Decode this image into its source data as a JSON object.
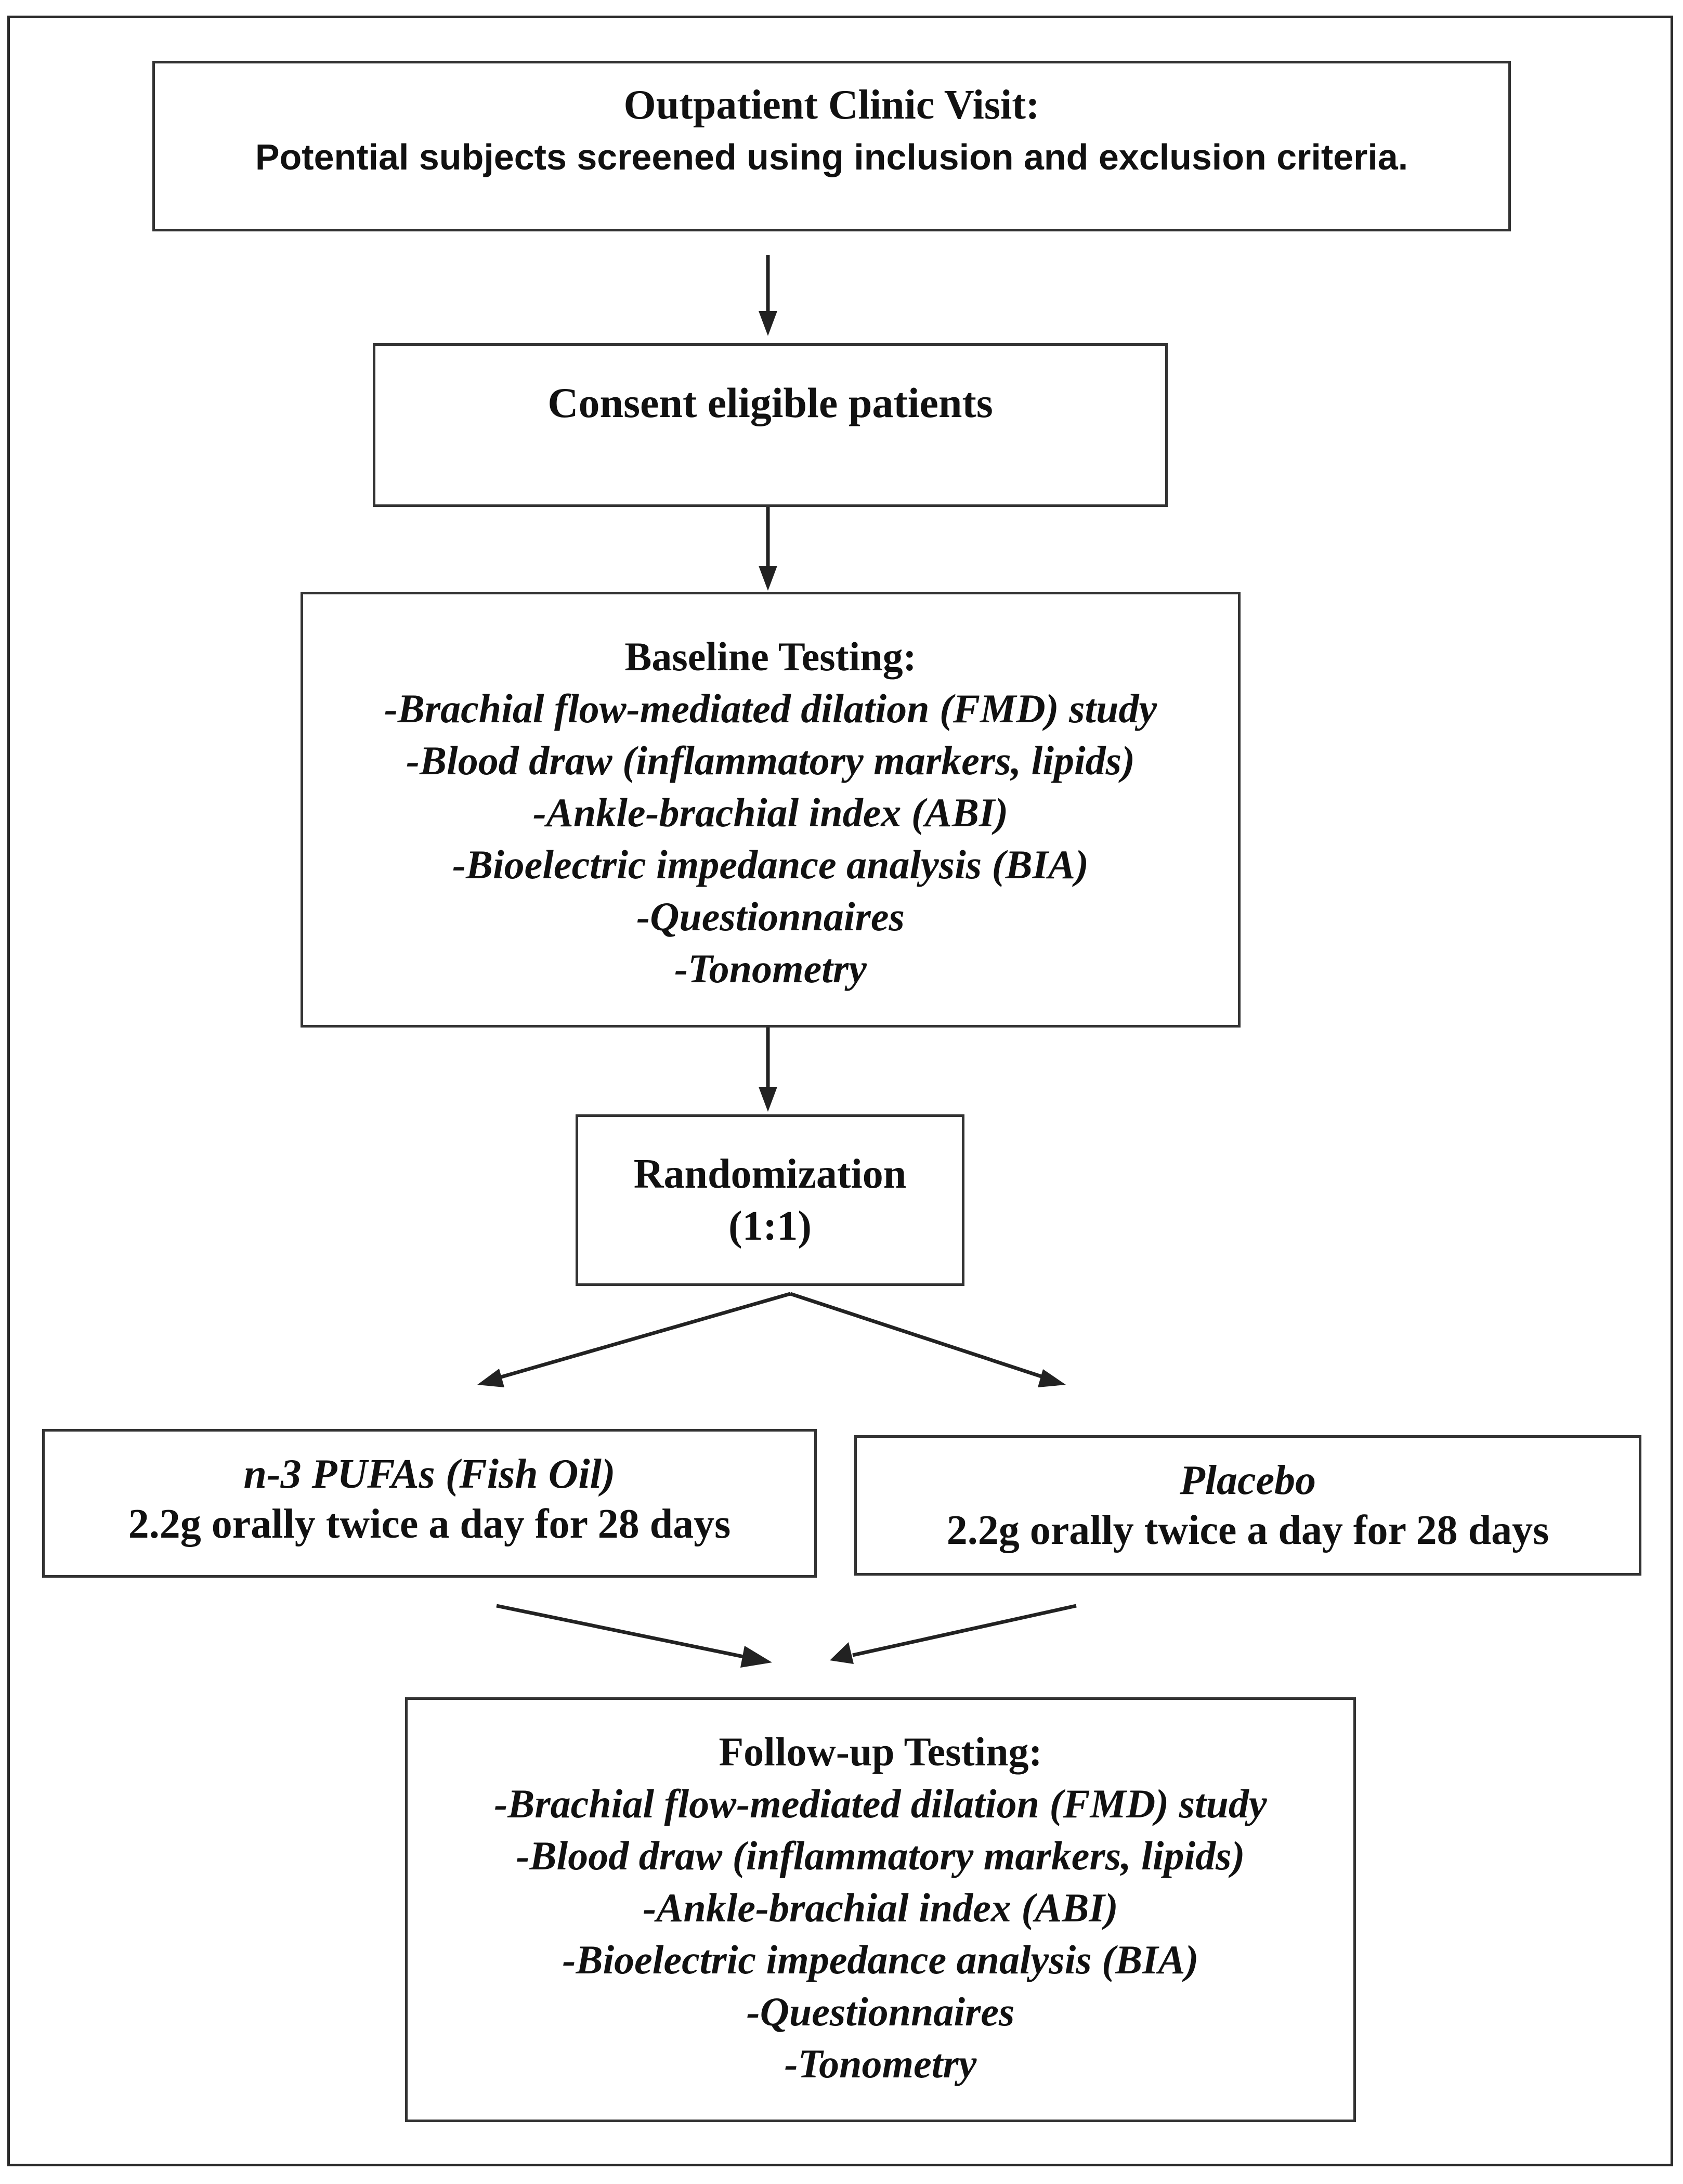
{
  "outpatient": {
    "title": "Outpatient Clinic Visit:",
    "subtitle": "Potential subjects screened using inclusion and exclusion criteria."
  },
  "consent": {
    "label": "Consent eligible patients"
  },
  "baseline": {
    "title": "Baseline Testing:",
    "items": [
      "-Brachial flow-mediated dilation (FMD) study",
      "-Blood draw (inflammatory markers, lipids)",
      "-Ankle-brachial index (ABI)",
      "-Bioelectric impedance analysis (BIA)",
      "-Questionnaires",
      "-Tonometry"
    ]
  },
  "randomization": {
    "title": "Randomization",
    "ratio": "(1:1)"
  },
  "arms": {
    "fish_oil": {
      "name": "n-3 PUFAs (Fish Oil)",
      "dose": "2.2g orally twice a day for 28 days"
    },
    "placebo": {
      "name": "Placebo",
      "dose": "2.2g orally twice a day for 28 days"
    }
  },
  "followup": {
    "title": "Follow-up Testing:",
    "items": [
      "-Brachial flow-mediated dilation (FMD) study",
      "-Blood draw (inflammatory markers, lipids)",
      "-Ankle-brachial index (ABI)",
      "-Bioelectric impedance analysis (BIA)",
      "-Questionnaires",
      "-Tonometry"
    ]
  }
}
